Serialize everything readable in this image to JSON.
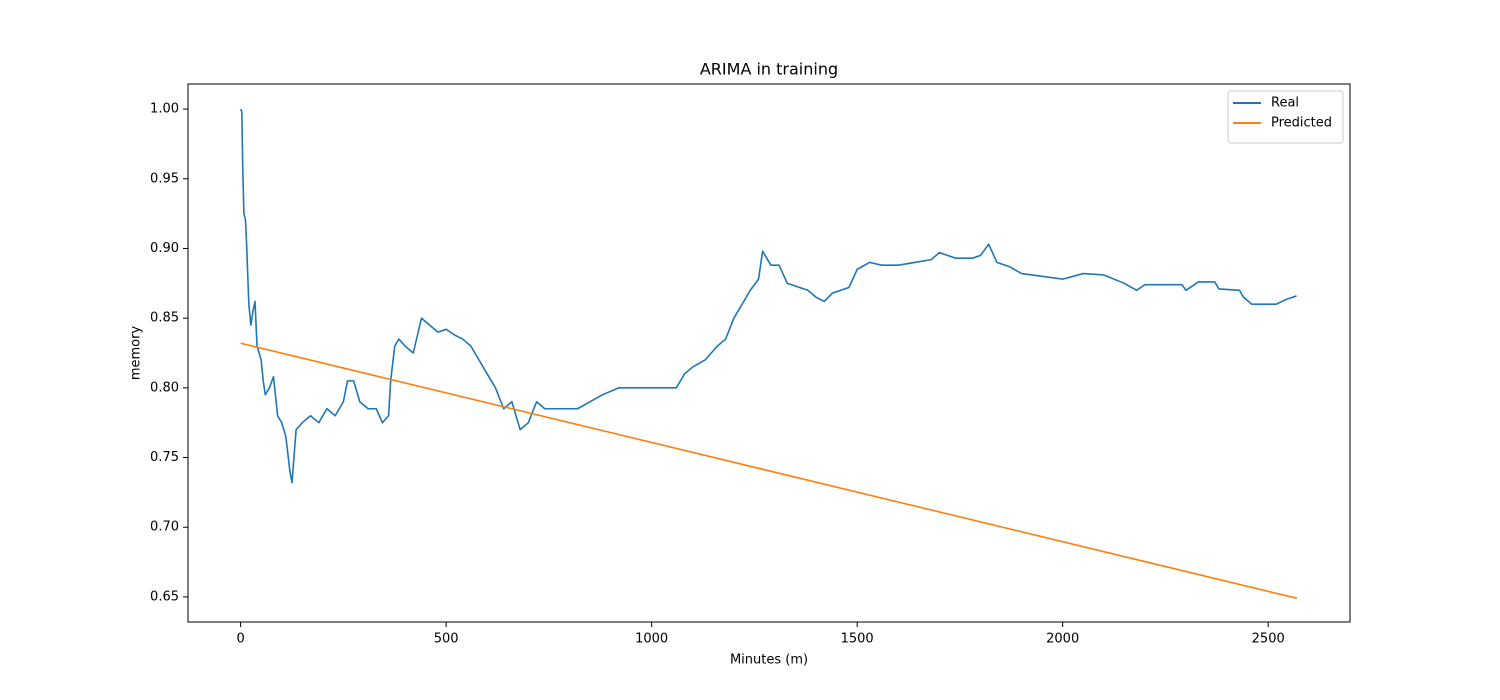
{
  "chart_data": {
    "type": "line",
    "title": "ARIMA in training",
    "x_label": "Minutes (m)",
    "y_label": "memory",
    "xlim": [
      -128,
      2699
    ],
    "ylim": [
      0.632,
      1.018
    ],
    "xticks": [
      0,
      500,
      1000,
      1500,
      2000,
      2500
    ],
    "yticks": [
      0.65,
      {
        "value": 0.7,
        "label": "0.70"
      },
      0.75,
      {
        "value": 0.8,
        "label": "0.80"
      },
      0.85,
      {
        "value": 0.9,
        "label": "0.90"
      },
      0.95,
      {
        "value": 1.0,
        "label": "1.00"
      }
    ],
    "grid": false,
    "legend": "upper right",
    "series": [
      {
        "name": "Real",
        "color": "#1f77b4",
        "x": [
          0,
          3,
          5,
          8,
          12,
          15,
          20,
          25,
          30,
          35,
          40,
          45,
          50,
          55,
          60,
          70,
          80,
          90,
          100,
          110,
          120,
          125,
          135,
          150,
          170,
          190,
          210,
          230,
          250,
          260,
          275,
          290,
          310,
          330,
          345,
          360,
          365,
          375,
          385,
          400,
          420,
          440,
          460,
          480,
          500,
          520,
          540,
          560,
          580,
          600,
          620,
          640,
          660,
          680,
          700,
          720,
          740,
          780,
          820,
          850,
          880,
          920,
          960,
          1000,
          1040,
          1060,
          1080,
          1100,
          1130,
          1160,
          1180,
          1200,
          1220,
          1240,
          1260,
          1270,
          1290,
          1310,
          1330,
          1360,
          1380,
          1400,
          1420,
          1440,
          1480,
          1500,
          1530,
          1560,
          1600,
          1640,
          1680,
          1700,
          1740,
          1780,
          1800,
          1820,
          1840,
          1870,
          1900,
          1950,
          2000,
          2050,
          2100,
          2150,
          2180,
          2200,
          2290,
          2300,
          2330,
          2370,
          2380,
          2430,
          2440,
          2460,
          2520,
          2540,
          2569
        ],
        "values": [
          1.0,
          0.998,
          0.96,
          0.925,
          0.92,
          0.9,
          0.86,
          0.845,
          0.855,
          0.862,
          0.83,
          0.825,
          0.82,
          0.805,
          0.795,
          0.8,
          0.808,
          0.78,
          0.775,
          0.765,
          0.74,
          0.732,
          0.77,
          0.775,
          0.78,
          0.775,
          0.785,
          0.78,
          0.79,
          0.805,
          0.805,
          0.79,
          0.785,
          0.785,
          0.775,
          0.78,
          0.805,
          0.83,
          0.835,
          0.83,
          0.825,
          0.85,
          0.845,
          0.84,
          0.842,
          0.838,
          0.835,
          0.83,
          0.82,
          0.81,
          0.8,
          0.785,
          0.79,
          0.77,
          0.775,
          0.79,
          0.785,
          0.785,
          0.785,
          0.79,
          0.795,
          0.8,
          0.8,
          0.8,
          0.8,
          0.8,
          0.81,
          0.815,
          0.82,
          0.83,
          0.835,
          0.85,
          0.86,
          0.87,
          0.878,
          0.898,
          0.888,
          0.888,
          0.875,
          0.872,
          0.87,
          0.865,
          0.862,
          0.868,
          0.872,
          0.885,
          0.89,
          0.888,
          0.888,
          0.89,
          0.892,
          0.897,
          0.893,
          0.893,
          0.895,
          0.903,
          0.89,
          0.887,
          0.882,
          0.88,
          0.878,
          0.882,
          0.881,
          0.875,
          0.87,
          0.874,
          0.874,
          0.87,
          0.876,
          0.876,
          0.871,
          0.87,
          0.865,
          0.86,
          0.86,
          0.863,
          0.866
        ]
      },
      {
        "name": "Predicted",
        "color": "#ff7f0e",
        "x": [
          0,
          2570
        ],
        "values": [
          0.832,
          0.649
        ]
      }
    ]
  }
}
